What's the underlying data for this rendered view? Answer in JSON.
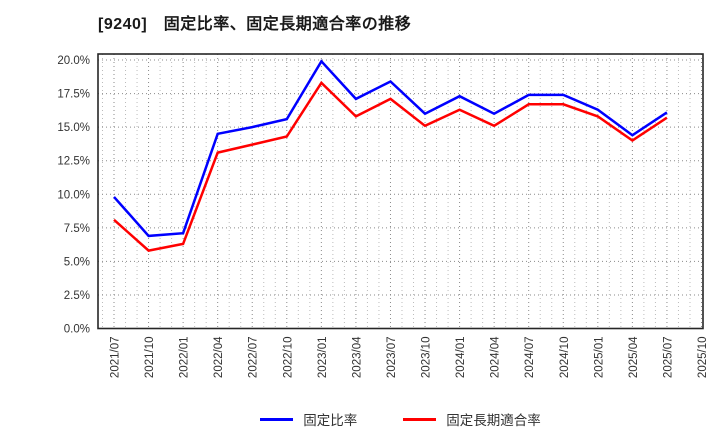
{
  "page": {
    "background": "#ffffff"
  },
  "chart_data": {
    "type": "line",
    "title": "[9240]　固定比率、固定長期適合率の推移",
    "categories": [
      "2021/07",
      "2021/10",
      "2022/01",
      "2022/04",
      "2022/07",
      "2022/10",
      "2023/01",
      "2023/04",
      "2023/07",
      "2023/10",
      "2024/01",
      "2024/04",
      "2024/07",
      "2024/10",
      "2025/01",
      "2025/04",
      "2025/07",
      "2025/10"
    ],
    "series": [
      {
        "name": "固定比率",
        "color": "#0000ff",
        "values": [
          9.8,
          6.9,
          7.1,
          14.5,
          15.0,
          15.6,
          19.9,
          17.1,
          18.4,
          16.0,
          17.3,
          16.0,
          17.4,
          17.4,
          16.3,
          14.4,
          16.1,
          null
        ]
      },
      {
        "name": "固定長期適合率",
        "color": "#ff0000",
        "values": [
          8.1,
          5.8,
          6.3,
          13.1,
          13.7,
          14.3,
          18.3,
          15.8,
          17.1,
          15.1,
          16.3,
          15.1,
          16.7,
          16.7,
          15.8,
          14.0,
          15.7,
          null
        ]
      }
    ],
    "xlabel": "",
    "ylabel": "",
    "ylim": [
      0,
      20
    ],
    "ytick_step": 2.5,
    "ytick_labels": [
      "0.0%",
      "2.5%",
      "5.0%",
      "7.5%",
      "10.0%",
      "12.5%",
      "15.0%",
      "17.5%",
      "20.0%"
    ],
    "grid": {
      "horizontal": "major",
      "vertical": "major+minor",
      "style": "dotted"
    },
    "legend_position": "bottom-center",
    "colors": {
      "axis": "#262626",
      "grid_major": "#8a8a8a",
      "grid_minor": "#bbbbbb",
      "tick_text": "#333333"
    }
  }
}
